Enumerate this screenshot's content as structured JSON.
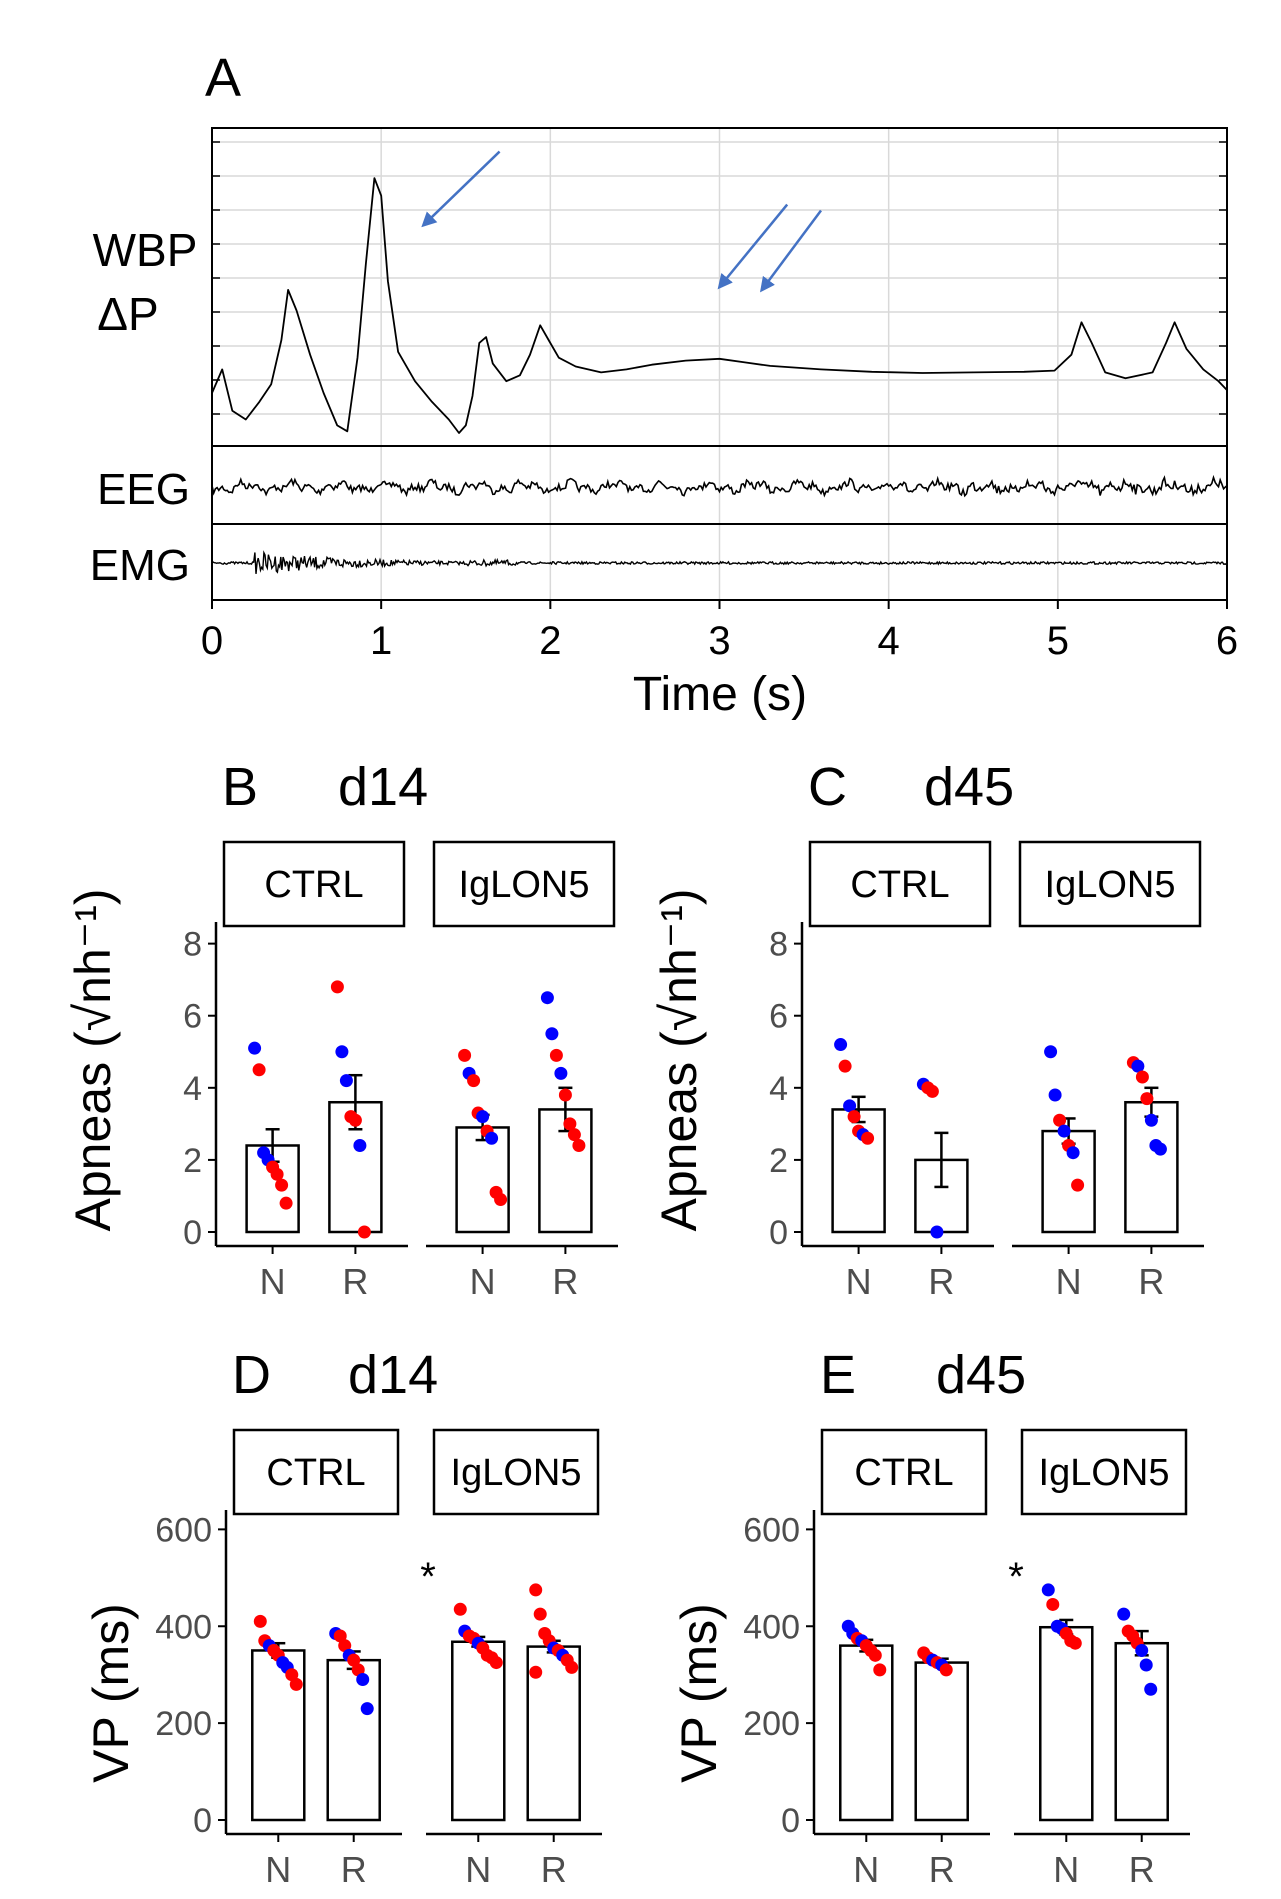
{
  "colors": {
    "red": "#ff0000",
    "blue": "#0000ff",
    "arrow": "#4472c4",
    "trace": "#000000",
    "tick_text": "#4d4d4d",
    "grid": "#d9d9d9"
  },
  "chart_data": [
    {
      "panel": "A",
      "type": "line",
      "traces": [
        "WBP",
        "ΔP",
        "EEG",
        "EMG"
      ],
      "xlabel": "Time (s)",
      "xlim": [
        0,
        6
      ],
      "xticks": [
        "0",
        "1",
        "2",
        "3",
        "4",
        "5",
        "6"
      ],
      "wbp_points": [
        [
          0,
          -0.3
        ],
        [
          0.06,
          0.1
        ],
        [
          0.12,
          -0.6
        ],
        [
          0.2,
          -0.75
        ],
        [
          0.28,
          -0.45
        ],
        [
          0.35,
          -0.15
        ],
        [
          0.41,
          0.6
        ],
        [
          0.45,
          1.45
        ],
        [
          0.5,
          1.1
        ],
        [
          0.58,
          0.35
        ],
        [
          0.66,
          -0.3
        ],
        [
          0.74,
          -0.85
        ],
        [
          0.8,
          -0.95
        ],
        [
          0.86,
          0.3
        ],
        [
          0.91,
          1.9
        ],
        [
          0.96,
          3.35
        ],
        [
          1.0,
          3.05
        ],
        [
          1.04,
          1.6
        ],
        [
          1.1,
          0.4
        ],
        [
          1.2,
          -0.1
        ],
        [
          1.3,
          -0.45
        ],
        [
          1.4,
          -0.75
        ],
        [
          1.46,
          -0.98
        ],
        [
          1.5,
          -0.85
        ],
        [
          1.54,
          -0.35
        ],
        [
          1.58,
          0.55
        ],
        [
          1.62,
          0.65
        ],
        [
          1.66,
          0.2
        ],
        [
          1.74,
          -0.1
        ],
        [
          1.82,
          0.0
        ],
        [
          1.88,
          0.35
        ],
        [
          1.94,
          0.85
        ],
        [
          1.99,
          0.6
        ],
        [
          2.05,
          0.3
        ],
        [
          2.15,
          0.15
        ],
        [
          2.3,
          0.05
        ],
        [
          2.45,
          0.1
        ],
        [
          2.6,
          0.18
        ],
        [
          2.8,
          0.25
        ],
        [
          3.0,
          0.28
        ],
        [
          3.15,
          0.22
        ],
        [
          3.3,
          0.16
        ],
        [
          3.6,
          0.1
        ],
        [
          3.9,
          0.06
        ],
        [
          4.2,
          0.04
        ],
        [
          4.5,
          0.05
        ],
        [
          4.8,
          0.06
        ],
        [
          4.98,
          0.08
        ],
        [
          5.08,
          0.35
        ],
        [
          5.14,
          0.9
        ],
        [
          5.2,
          0.55
        ],
        [
          5.28,
          0.05
        ],
        [
          5.4,
          -0.05
        ],
        [
          5.56,
          0.05
        ],
        [
          5.64,
          0.55
        ],
        [
          5.69,
          0.9
        ],
        [
          5.76,
          0.45
        ],
        [
          5.86,
          0.1
        ],
        [
          5.95,
          -0.1
        ],
        [
          6.0,
          -0.25
        ]
      ],
      "wbp_ylim": [
        -1.2,
        4.2
      ],
      "arrows": [
        {
          "from": [
            1.7,
            3.8
          ],
          "to": [
            1.25,
            2.55
          ]
        },
        {
          "from": [
            3.4,
            2.9
          ],
          "to": [
            3.0,
            1.5
          ]
        },
        {
          "from": [
            3.6,
            2.8
          ],
          "to": [
            3.25,
            1.45
          ]
        }
      ]
    },
    {
      "panel": "B",
      "title": "d14",
      "type": "bar",
      "ylabel_main": "Apneas",
      "ylabel_unit": "(√nh⁻¹)",
      "ylabel_sup": "-1",
      "ylim": [
        0,
        8.6
      ],
      "yticks": [
        "0",
        "2",
        "4",
        "6",
        "8"
      ],
      "facets": [
        {
          "label": "CTRL",
          "categories": [
            "N",
            "R"
          ],
          "means": [
            2.4,
            3.6
          ],
          "sems": [
            0.45,
            0.75
          ],
          "points": [
            [
              {
                "y": 5.1,
                "c": "blue"
              },
              {
                "y": 4.5,
                "c": "red"
              },
              {
                "y": 2.2,
                "c": "blue"
              },
              {
                "y": 2.0,
                "c": "blue"
              },
              {
                "y": 1.8,
                "c": "red"
              },
              {
                "y": 1.6,
                "c": "red"
              },
              {
                "y": 1.3,
                "c": "red"
              },
              {
                "y": 0.8,
                "c": "red"
              }
            ],
            [
              {
                "y": 6.8,
                "c": "red"
              },
              {
                "y": 5.0,
                "c": "blue"
              },
              {
                "y": 4.2,
                "c": "blue"
              },
              {
                "y": 3.2,
                "c": "red"
              },
              {
                "y": 3.1,
                "c": "red"
              },
              {
                "y": 2.4,
                "c": "blue"
              },
              {
                "y": 0.0,
                "c": "red"
              }
            ]
          ]
        },
        {
          "label": "IgLON5",
          "categories": [
            "N",
            "R"
          ],
          "means": [
            2.9,
            3.4
          ],
          "sems": [
            0.35,
            0.6
          ],
          "points": [
            [
              {
                "y": 4.9,
                "c": "red"
              },
              {
                "y": 4.4,
                "c": "blue"
              },
              {
                "y": 4.2,
                "c": "red"
              },
              {
                "y": 3.3,
                "c": "red"
              },
              {
                "y": 3.2,
                "c": "blue"
              },
              {
                "y": 2.8,
                "c": "red"
              },
              {
                "y": 2.6,
                "c": "blue"
              },
              {
                "y": 1.1,
                "c": "red"
              },
              {
                "y": 0.9,
                "c": "red"
              }
            ],
            [
              {
                "y": 6.5,
                "c": "blue"
              },
              {
                "y": 5.5,
                "c": "blue"
              },
              {
                "y": 4.9,
                "c": "red"
              },
              {
                "y": 4.4,
                "c": "blue"
              },
              {
                "y": 3.8,
                "c": "red"
              },
              {
                "y": 3.0,
                "c": "red"
              },
              {
                "y": 2.7,
                "c": "red"
              },
              {
                "y": 2.4,
                "c": "red"
              }
            ]
          ]
        }
      ]
    },
    {
      "panel": "C",
      "title": "d45",
      "type": "bar",
      "ylabel_main": "Apneas",
      "ylabel_unit": "(√nh⁻¹)",
      "ylabel_sup": "-1",
      "ylim": [
        0,
        8.6
      ],
      "yticks": [
        "0",
        "2",
        "4",
        "6",
        "8"
      ],
      "facets": [
        {
          "label": "CTRL",
          "categories": [
            "N",
            "R"
          ],
          "means": [
            3.4,
            2.0
          ],
          "sems": [
            0.35,
            0.75
          ],
          "points": [
            [
              {
                "y": 5.2,
                "c": "blue"
              },
              {
                "y": 4.6,
                "c": "red"
              },
              {
                "y": 3.5,
                "c": "blue"
              },
              {
                "y": 3.2,
                "c": "red"
              },
              {
                "y": 2.8,
                "c": "red"
              },
              {
                "y": 2.7,
                "c": "blue"
              },
              {
                "y": 2.6,
                "c": "red"
              }
            ],
            [
              {
                "y": 4.1,
                "c": "blue"
              },
              {
                "y": 4.0,
                "c": "red"
              },
              {
                "y": 3.9,
                "c": "red"
              },
              {
                "y": 0.0,
                "c": "blue"
              }
            ]
          ]
        },
        {
          "label": "IgLON5",
          "categories": [
            "N",
            "R"
          ],
          "means": [
            2.8,
            3.6
          ],
          "sems": [
            0.35,
            0.4
          ],
          "points": [
            [
              {
                "y": 5.0,
                "c": "blue"
              },
              {
                "y": 3.8,
                "c": "blue"
              },
              {
                "y": 3.1,
                "c": "red"
              },
              {
                "y": 2.8,
                "c": "blue"
              },
              {
                "y": 2.4,
                "c": "red"
              },
              {
                "y": 2.2,
                "c": "blue"
              },
              {
                "y": 1.3,
                "c": "red"
              }
            ],
            [
              {
                "y": 4.7,
                "c": "red"
              },
              {
                "y": 4.6,
                "c": "blue"
              },
              {
                "y": 4.3,
                "c": "red"
              },
              {
                "y": 3.7,
                "c": "red"
              },
              {
                "y": 3.1,
                "c": "blue"
              },
              {
                "y": 2.4,
                "c": "blue"
              },
              {
                "y": 2.3,
                "c": "blue"
              }
            ]
          ]
        }
      ]
    },
    {
      "panel": "D",
      "title": "d14",
      "type": "bar",
      "ylabel_main": "VP (ms)",
      "ylim": [
        0,
        640
      ],
      "yticks": [
        "0",
        "200",
        "400",
        "600"
      ],
      "annotation": "*",
      "facets": [
        {
          "label": "CTRL",
          "categories": [
            "N",
            "R"
          ],
          "means": [
            350,
            330
          ],
          "sems": [
            15,
            18
          ],
          "points": [
            [
              {
                "y": 410,
                "c": "red"
              },
              {
                "y": 370,
                "c": "red"
              },
              {
                "y": 360,
                "c": "blue"
              },
              {
                "y": 350,
                "c": "red"
              },
              {
                "y": 340,
                "c": "red"
              },
              {
                "y": 325,
                "c": "blue"
              },
              {
                "y": 315,
                "c": "blue"
              },
              {
                "y": 300,
                "c": "red"
              },
              {
                "y": 280,
                "c": "red"
              }
            ],
            [
              {
                "y": 385,
                "c": "blue"
              },
              {
                "y": 380,
                "c": "red"
              },
              {
                "y": 360,
                "c": "red"
              },
              {
                "y": 340,
                "c": "blue"
              },
              {
                "y": 330,
                "c": "red"
              },
              {
                "y": 310,
                "c": "red"
              },
              {
                "y": 290,
                "c": "blue"
              },
              {
                "y": 230,
                "c": "blue"
              }
            ]
          ]
        },
        {
          "label": "IgLON5",
          "categories": [
            "N",
            "R"
          ],
          "means": [
            368,
            358
          ],
          "sems": [
            10,
            12
          ],
          "points": [
            [
              {
                "y": 435,
                "c": "red"
              },
              {
                "y": 390,
                "c": "blue"
              },
              {
                "y": 380,
                "c": "red"
              },
              {
                "y": 375,
                "c": "red"
              },
              {
                "y": 365,
                "c": "blue"
              },
              {
                "y": 355,
                "c": "red"
              },
              {
                "y": 340,
                "c": "red"
              },
              {
                "y": 335,
                "c": "red"
              },
              {
                "y": 325,
                "c": "red"
              }
            ],
            [
              {
                "y": 475,
                "c": "red"
              },
              {
                "y": 425,
                "c": "red"
              },
              {
                "y": 385,
                "c": "red"
              },
              {
                "y": 370,
                "c": "red"
              },
              {
                "y": 355,
                "c": "blue"
              },
              {
                "y": 350,
                "c": "red"
              },
              {
                "y": 340,
                "c": "blue"
              },
              {
                "y": 330,
                "c": "red"
              },
              {
                "y": 315,
                "c": "red"
              },
              {
                "y": 305,
                "c": "red"
              }
            ]
          ]
        }
      ]
    },
    {
      "panel": "E",
      "title": "d45",
      "type": "bar",
      "ylabel_main": "VP (ms)",
      "ylim": [
        0,
        640
      ],
      "yticks": [
        "0",
        "200",
        "400",
        "600"
      ],
      "annotation": "*",
      "facets": [
        {
          "label": "CTRL",
          "categories": [
            "N",
            "R"
          ],
          "means": [
            360,
            325
          ],
          "sems": [
            12,
            8
          ],
          "points": [
            [
              {
                "y": 400,
                "c": "blue"
              },
              {
                "y": 385,
                "c": "blue"
              },
              {
                "y": 375,
                "c": "red"
              },
              {
                "y": 370,
                "c": "blue"
              },
              {
                "y": 360,
                "c": "red"
              },
              {
                "y": 350,
                "c": "red"
              },
              {
                "y": 340,
                "c": "red"
              },
              {
                "y": 310,
                "c": "red"
              }
            ],
            [
              {
                "y": 345,
                "c": "red"
              },
              {
                "y": 335,
                "c": "red"
              },
              {
                "y": 330,
                "c": "blue"
              },
              {
                "y": 325,
                "c": "red"
              },
              {
                "y": 320,
                "c": "blue"
              },
              {
                "y": 310,
                "c": "red"
              }
            ]
          ]
        },
        {
          "label": "IgLON5",
          "categories": [
            "N",
            "R"
          ],
          "means": [
            398,
            365
          ],
          "sems": [
            15,
            25
          ],
          "points": [
            [
              {
                "y": 475,
                "c": "blue"
              },
              {
                "y": 445,
                "c": "red"
              },
              {
                "y": 400,
                "c": "blue"
              },
              {
                "y": 395,
                "c": "blue"
              },
              {
                "y": 385,
                "c": "red"
              },
              {
                "y": 370,
                "c": "red"
              },
              {
                "y": 365,
                "c": "red"
              }
            ],
            [
              {
                "y": 425,
                "c": "blue"
              },
              {
                "y": 390,
                "c": "red"
              },
              {
                "y": 380,
                "c": "red"
              },
              {
                "y": 365,
                "c": "red"
              },
              {
                "y": 350,
                "c": "blue"
              },
              {
                "y": 320,
                "c": "blue"
              },
              {
                "y": 270,
                "c": "blue"
              }
            ]
          ]
        }
      ]
    }
  ]
}
